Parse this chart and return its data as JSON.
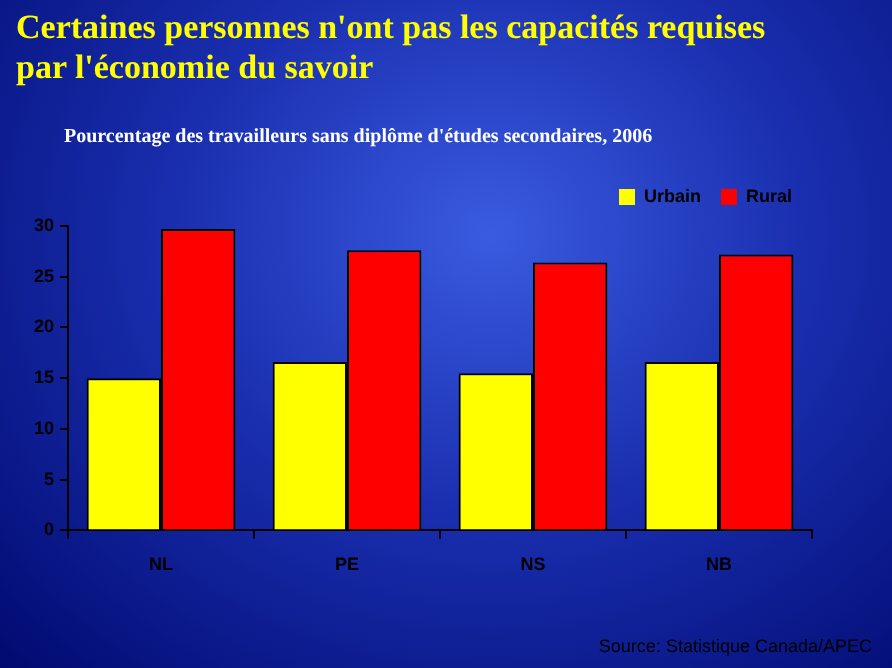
{
  "chart_data": {
    "type": "bar",
    "title": "Certaines personnes n'ont pas les capacités requises par l'économie du savoir",
    "subtitle": "Pourcentage des travailleurs sans diplôme d'études secondaires, 2006",
    "categories": [
      "NL",
      "PE",
      "NS",
      "NB"
    ],
    "series": [
      {
        "name": "Urbain",
        "color": "#ffff00",
        "values": [
          15.0,
          16.6,
          15.5,
          16.6
        ]
      },
      {
        "name": "Rural",
        "color": "#ff0000",
        "values": [
          29.7,
          27.6,
          26.4,
          27.2
        ]
      }
    ],
    "ylim": [
      0,
      30
    ],
    "yticks": [
      0,
      5,
      10,
      15,
      20,
      25,
      30
    ],
    "grid": false,
    "legend": "top right",
    "annotations": [
      "Source: Statistique Canada/APEC"
    ]
  }
}
